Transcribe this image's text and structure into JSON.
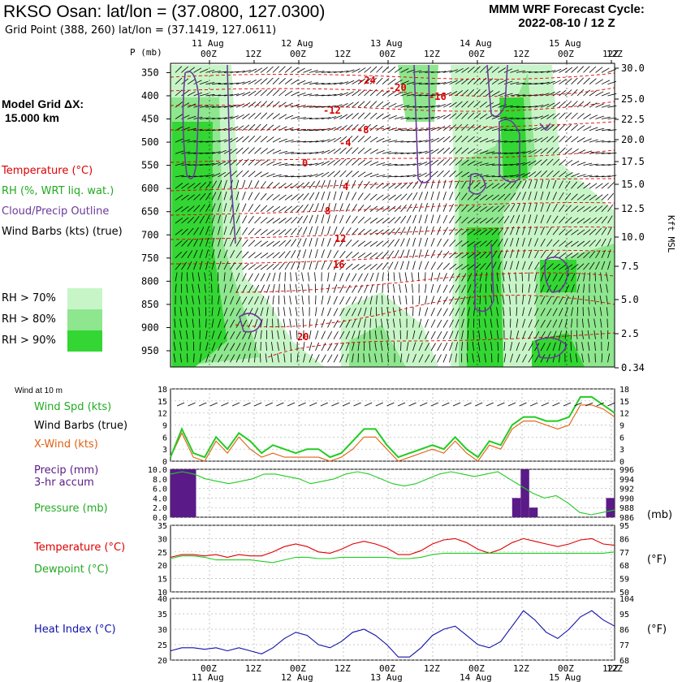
{
  "header": {
    "title": "RKSO Osan:  lat/lon = (37.0800, 127.0300)",
    "subtitle": "Grid Point (388, 260) lat/lon = (37.1419, 127.0611)",
    "cycle_line1": "MMM WRF Forecast Cycle:",
    "cycle_line2": "2022-08-10 / 12  Z",
    "model_grid_line1": "Model Grid ΔX:",
    "model_grid_line2": "15.000 km"
  },
  "legend": {
    "temperature": "Temperature (°C)",
    "rh": "RH (%, WRT liq. wat.)",
    "cloud": "Cloud/Precip Outline",
    "wind": "Wind Barbs (kts) (true)",
    "rh70": "RH > 70%",
    "rh80": "RH > 80%",
    "rh90": "RH > 90%",
    "wind10m": "Wind at 10 m",
    "wind_spd": "Wind Spd (kts)",
    "wind_barbs": "Wind Barbs (true)",
    "x_wind": "X-Wind (kts)",
    "precip1": "Precip (mm)",
    "precip2": "3-hr accum",
    "pressure": "Pressure (mb)",
    "temp_sfc": "Temperature (°C)",
    "dewpoint": "Dewpoint (°C)",
    "heat_index": "Heat Index (°C)",
    "unit_mb": "(mb)",
    "unit_f1": "(°F)",
    "unit_f2": "(°F)",
    "kft_msl": "Kft MSL",
    "p_mb": "P (mb)"
  },
  "colors": {
    "rh70": "#c8f5c8",
    "rh80": "#8ee68e",
    "rh90": "#33d633",
    "temperature": "#dd0000",
    "wind_spd": "#22cc22",
    "x_wind": "#e06010",
    "precip": "#5a1a88",
    "cloud": "#6a3a9a",
    "heat_index": "#1010aa"
  },
  "time_axis": {
    "hour_labels": [
      "00Z",
      "12Z",
      "00Z",
      "12Z",
      "00Z",
      "12Z",
      "00Z",
      "12Z",
      "00Z",
      "12Z"
    ],
    "hour_label_top_extra": "12Z",
    "day_labels": [
      "11 Aug",
      "12 Aug",
      "13 Aug",
      "14 Aug",
      "15 Aug"
    ]
  },
  "chart_data": [
    {
      "type": "heatmap",
      "name_hint": "time-height cross section",
      "y_pressure_ticks": [
        350,
        400,
        450,
        500,
        550,
        600,
        650,
        700,
        750,
        800,
        850,
        900,
        950
      ],
      "y_height_ticks_kft": [
        "30.0",
        "25.0",
        "22.5",
        "20.0",
        "17.5",
        "15.0",
        "12.5",
        "10.0",
        "7.5",
        "5.0",
        "2.5",
        "0.34"
      ],
      "temperature_contour_labels": [
        "-24",
        "-20",
        "-16",
        "-12",
        "-8",
        "-4",
        "0",
        "4",
        "8",
        "12",
        "16",
        "20"
      ]
    },
    {
      "type": "line",
      "ylabel": "Wind Spd (kts)",
      "y_ticks_left": [
        "18",
        "15",
        "12",
        "9",
        "6",
        "3",
        "0"
      ],
      "y_ticks_right": [
        "18",
        "15",
        "12",
        "9",
        "6",
        "3",
        "0"
      ],
      "ylim": [
        0,
        18
      ],
      "series": [
        {
          "name": "Wind Spd (kts)",
          "values": [
            1,
            8,
            2,
            1,
            6,
            3,
            7,
            5,
            2,
            4,
            3,
            2,
            3,
            3,
            1,
            2,
            5,
            8,
            8,
            4,
            1,
            2,
            3,
            4,
            3,
            6,
            3,
            1,
            5,
            4,
            9,
            11,
            11,
            10,
            10,
            11,
            16,
            16,
            14,
            12
          ]
        },
        {
          "name": "X-Wind (kts)",
          "values": [
            1,
            7,
            1,
            0,
            5,
            2,
            6,
            3,
            1,
            2,
            1,
            1,
            1,
            1,
            0,
            1,
            3,
            6,
            6,
            3,
            0,
            1,
            2,
            3,
            2,
            5,
            2,
            0,
            4,
            3,
            8,
            10,
            10,
            9,
            8,
            9,
            14,
            14,
            13,
            11
          ]
        }
      ]
    },
    {
      "type": "bar",
      "ylabel": "Precip (mm)",
      "y_ticks_left": [
        "10.0",
        "8.0",
        "6.0",
        "4.0",
        "2.0",
        "0.0"
      ],
      "ylim": [
        0,
        10
      ],
      "values": [
        10,
        10,
        10,
        0,
        0,
        0,
        0,
        0,
        0,
        0,
        0,
        0,
        0,
        0,
        0,
        0,
        0,
        0,
        0,
        0,
        0,
        0,
        0,
        0,
        0,
        0,
        0,
        0,
        0,
        0,
        0,
        0,
        0,
        0,
        0,
        0,
        0,
        0,
        0,
        0,
        4,
        10,
        2,
        0,
        0,
        0,
        0,
        0,
        0,
        0,
        0,
        4
      ]
    },
    {
      "type": "line",
      "ylabel": "Pressure (mb)",
      "y_ticks_right": [
        "996",
        "994",
        "992",
        "990",
        "988",
        "986"
      ],
      "ylim": [
        986,
        996
      ],
      "series": [
        {
          "name": "Pressure (mb)",
          "values": [
            995,
            995.5,
            995,
            994,
            993.5,
            993,
            993.5,
            994,
            995,
            995,
            994.5,
            994,
            993,
            993.5,
            994,
            995,
            995.5,
            995,
            994,
            993,
            992.5,
            993,
            994,
            995,
            995.5,
            995,
            994.5,
            995,
            995.5,
            994,
            992.5,
            991,
            990,
            990.5,
            989,
            987,
            986.5,
            987,
            987.5
          ]
        }
      ]
    },
    {
      "type": "line",
      "ylabel": "Temperature (°C)",
      "y_ticks_left": [
        "35",
        "30",
        "25",
        "20",
        "15",
        "10"
      ],
      "y_ticks_right": [
        "95",
        "86",
        "77",
        "68",
        "59",
        "50"
      ],
      "ylim": [
        10,
        35
      ],
      "series": [
        {
          "name": "Temperature (°C)",
          "values": [
            23,
            24,
            24,
            23.5,
            24,
            23,
            24,
            23.5,
            23.5,
            25,
            27,
            28,
            27,
            25,
            24.5,
            26,
            28,
            29,
            28,
            26.5,
            24,
            24,
            25.5,
            28,
            29.5,
            30,
            28.5,
            26,
            24.5,
            26,
            28.5,
            30,
            29,
            28,
            27,
            28,
            29.5,
            30,
            28,
            27.5
          ]
        },
        {
          "name": "Dewpoint (°C)",
          "values": [
            22.5,
            23.5,
            23.5,
            23,
            22,
            22,
            22,
            22,
            21.5,
            21,
            22,
            23,
            23,
            22.5,
            22.5,
            23,
            23,
            23,
            23,
            23,
            22.5,
            22.5,
            23,
            24,
            24.5,
            24.5,
            24.5,
            24.5,
            24.5,
            24.5,
            24.5,
            24.5,
            24.5,
            24.5,
            24.5,
            24.5,
            24.5,
            24.5,
            24.5,
            25
          ]
        }
      ]
    },
    {
      "type": "line",
      "ylabel": "Heat Index (°C)",
      "y_ticks_left": [
        "40",
        "35",
        "30",
        "25",
        "20"
      ],
      "y_ticks_right": [
        "104",
        "95",
        "86",
        "77",
        "68"
      ],
      "ylim": [
        20,
        40
      ],
      "series": [
        {
          "name": "Heat Index (°C)",
          "values": [
            23,
            24,
            24,
            23.5,
            24,
            23,
            24,
            23,
            22,
            24,
            27,
            29,
            28,
            25,
            24,
            26,
            29,
            30,
            28,
            25,
            21,
            21,
            24,
            28,
            30,
            31,
            28,
            25,
            24,
            26,
            31,
            36,
            33,
            29,
            27,
            30,
            34,
            36,
            33,
            31
          ]
        }
      ]
    }
  ]
}
